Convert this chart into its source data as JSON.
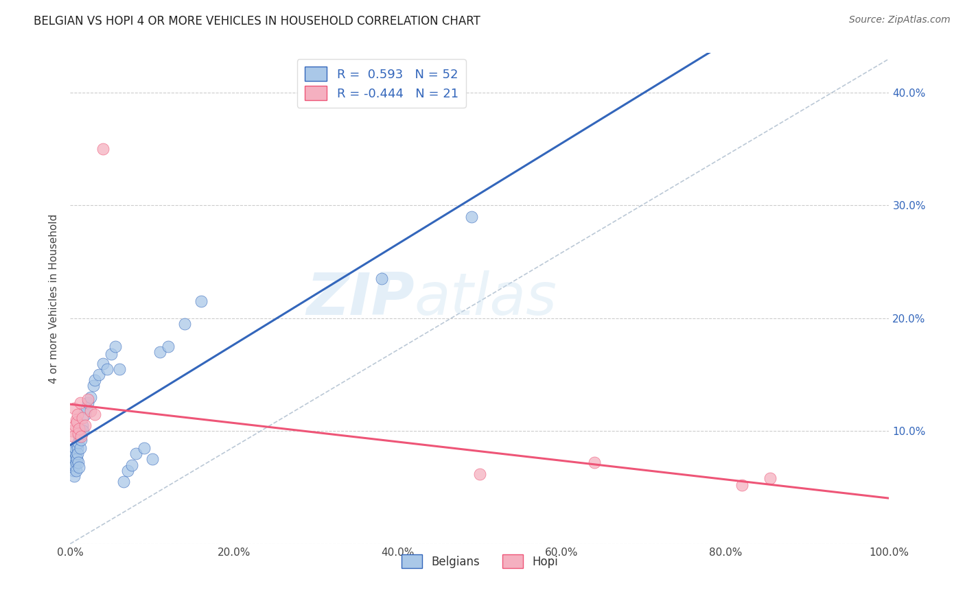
{
  "title": "BELGIAN VS HOPI 4 OR MORE VEHICLES IN HOUSEHOLD CORRELATION CHART",
  "source": "Source: ZipAtlas.com",
  "ylabel": "4 or more Vehicles in Household",
  "xlabel": "",
  "watermark_zip": "ZIP",
  "watermark_atlas": "atlas",
  "legend_belgian": "Belgians",
  "legend_hopi": "Hopi",
  "r_belgian": 0.593,
  "n_belgian": 52,
  "r_hopi": -0.444,
  "n_hopi": 21,
  "belgian_color": "#aac8e8",
  "hopi_color": "#f5b0c0",
  "belgian_line_color": "#3366bb",
  "hopi_line_color": "#ee5577",
  "dashed_line_color": "#aabbcc",
  "background_color": "#ffffff",
  "grid_color": "#cccccc",
  "xlim": [
    0.0,
    1.0
  ],
  "ylim": [
    0.0,
    0.435
  ],
  "xticks": [
    0.0,
    0.2,
    0.4,
    0.6,
    0.8,
    1.0
  ],
  "yticks": [
    0.0,
    0.1,
    0.2,
    0.3,
    0.4
  ],
  "xtick_labels": [
    "0.0%",
    "20.0%",
    "40.0%",
    "60.0%",
    "80.0%",
    "100.0%"
  ],
  "ytick_right_labels": [
    "",
    "10.0%",
    "20.0%",
    "30.0%",
    "40.0%"
  ],
  "belgian_x": [
    0.002,
    0.003,
    0.003,
    0.004,
    0.004,
    0.004,
    0.005,
    0.005,
    0.005,
    0.006,
    0.006,
    0.006,
    0.007,
    0.007,
    0.007,
    0.008,
    0.008,
    0.009,
    0.009,
    0.01,
    0.01,
    0.011,
    0.011,
    0.012,
    0.013,
    0.014,
    0.015,
    0.016,
    0.018,
    0.02,
    0.022,
    0.025,
    0.028,
    0.03,
    0.035,
    0.04,
    0.045,
    0.05,
    0.055,
    0.06,
    0.065,
    0.07,
    0.075,
    0.08,
    0.09,
    0.1,
    0.11,
    0.12,
    0.14,
    0.16,
    0.38,
    0.49
  ],
  "belgian_y": [
    0.075,
    0.068,
    0.072,
    0.08,
    0.065,
    0.07,
    0.078,
    0.082,
    0.06,
    0.085,
    0.07,
    0.075,
    0.072,
    0.078,
    0.065,
    0.088,
    0.075,
    0.085,
    0.08,
    0.09,
    0.072,
    0.095,
    0.068,
    0.085,
    0.092,
    0.098,
    0.105,
    0.1,
    0.115,
    0.12,
    0.125,
    0.13,
    0.14,
    0.145,
    0.15,
    0.16,
    0.155,
    0.168,
    0.175,
    0.155,
    0.055,
    0.065,
    0.07,
    0.08,
    0.085,
    0.075,
    0.17,
    0.175,
    0.195,
    0.215,
    0.235,
    0.29
  ],
  "hopi_x": [
    0.002,
    0.004,
    0.005,
    0.006,
    0.007,
    0.008,
    0.009,
    0.01,
    0.011,
    0.012,
    0.013,
    0.015,
    0.018,
    0.022,
    0.025,
    0.03,
    0.04,
    0.5,
    0.64,
    0.82,
    0.855
  ],
  "hopi_y": [
    0.1,
    0.095,
    0.12,
    0.105,
    0.11,
    0.108,
    0.115,
    0.098,
    0.102,
    0.125,
    0.095,
    0.112,
    0.105,
    0.128,
    0.118,
    0.115,
    0.35,
    0.062,
    0.072,
    0.052,
    0.058
  ]
}
